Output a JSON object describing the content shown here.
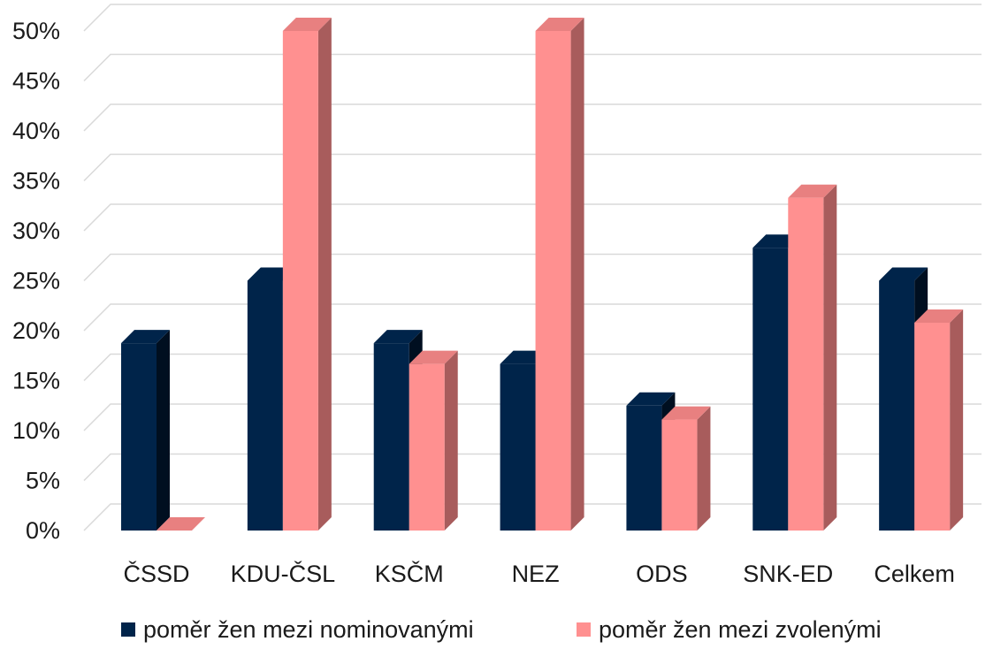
{
  "chart_data": {
    "type": "bar",
    "title": "",
    "xlabel": "",
    "ylabel": "",
    "ylim": [
      0,
      50
    ],
    "yticks": [
      "0%",
      "5%",
      "10%",
      "15%",
      "20%",
      "25%",
      "30%",
      "35%",
      "40%",
      "45%",
      "50%"
    ],
    "ytick_values": [
      0,
      5,
      10,
      15,
      20,
      25,
      30,
      35,
      40,
      45,
      50
    ],
    "grid": true,
    "legend_position": "bottom",
    "categories": [
      "ČSSD",
      "KDU-ČSL",
      "KSČM",
      "NEZ",
      "ODS",
      "SNK-ED",
      "Celkem"
    ],
    "series": [
      {
        "name": "poměr žen mezi nominovanými",
        "color": "#00244a",
        "values": [
          18.75,
          25,
          18.75,
          16.67,
          12.5,
          28.3,
          25
        ]
      },
      {
        "name": "poměr žen mezi zvolenými",
        "color": "#ff9090",
        "values": [
          0,
          50,
          16.67,
          50,
          11.1,
          33.3,
          20.8
        ]
      }
    ]
  }
}
